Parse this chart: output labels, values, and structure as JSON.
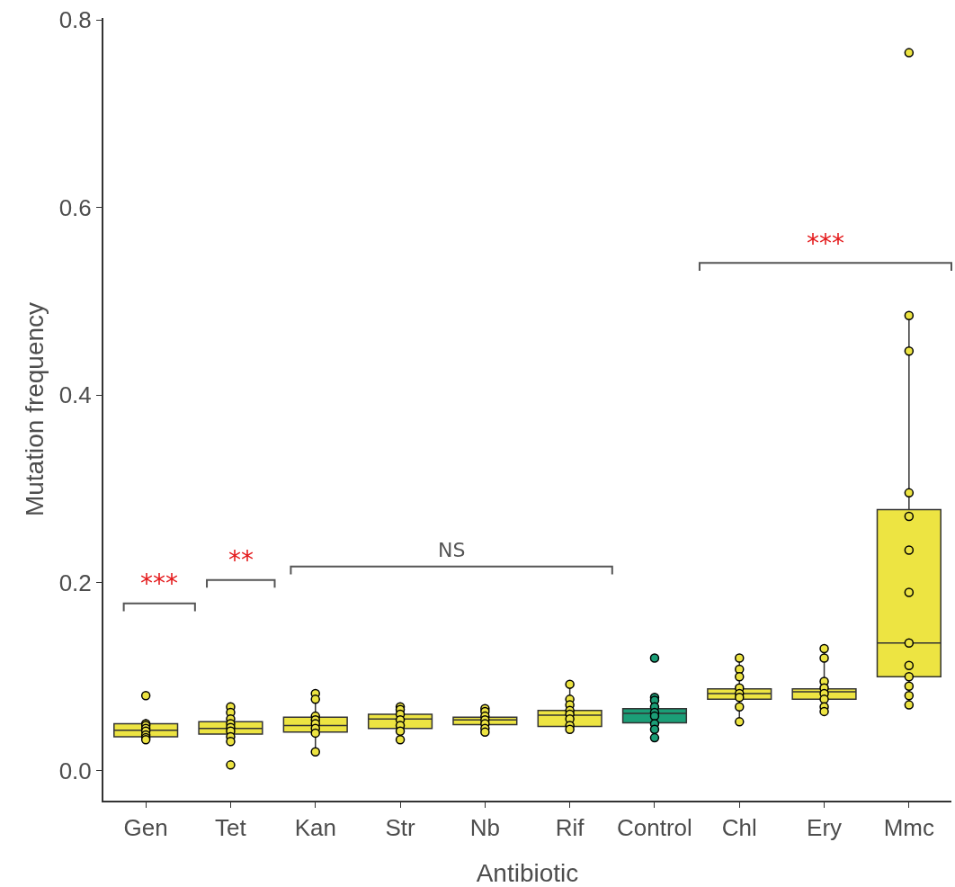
{
  "chart_data": {
    "type": "box",
    "xlabel": "Antibiotic",
    "ylabel": "Mutation frequency",
    "categories": [
      "Gen",
      "Tet",
      "Kan",
      "Str",
      "Nb",
      "Rif",
      "Control",
      "Chl",
      "Ery",
      "Mmc"
    ],
    "ylim": [
      -0.032,
      0.802
    ],
    "yticks": [
      {
        "value": 0,
        "label": "0.0"
      },
      0.2,
      0.4,
      0.6,
      0.8
    ],
    "grid": false,
    "marker": "circle",
    "annotations": [
      "***",
      "**",
      "NS",
      "***"
    ],
    "series": [
      {
        "colors": [
          "#ede442",
          "#ede442",
          "#ede442",
          "#ede442",
          "#ede442",
          "#ede442",
          "#1b9e77",
          "#ede442",
          "#ede442",
          "#ede442"
        ],
        "boxes": [
          {
            "low": 0.032,
            "q1": 0.036,
            "median": 0.043,
            "q3": 0.05,
            "high": 0.055,
            "outliers": [
              0.08
            ]
          },
          {
            "low": 0.03,
            "q1": 0.039,
            "median": 0.045,
            "q3": 0.052,
            "high": 0.068,
            "outliers": [
              0.006
            ]
          },
          {
            "low": 0.02,
            "q1": 0.041,
            "median": 0.048,
            "q3": 0.057,
            "high": 0.082
          },
          {
            "low": 0.033,
            "q1": 0.045,
            "median": 0.055,
            "q3": 0.06,
            "high": 0.068
          },
          {
            "low": 0.041,
            "q1": 0.049,
            "median": 0.054,
            "q3": 0.057,
            "high": 0.066
          },
          {
            "low": 0.044,
            "q1": 0.047,
            "median": 0.059,
            "q3": 0.064,
            "high": 0.092
          },
          {
            "low": 0.035,
            "q1": 0.051,
            "median": 0.061,
            "q3": 0.066,
            "high": 0.078,
            "outliers": [
              0.12
            ]
          },
          {
            "low": 0.052,
            "q1": 0.076,
            "median": 0.082,
            "q3": 0.087,
            "high": 0.12
          },
          {
            "low": 0.063,
            "q1": 0.076,
            "median": 0.084,
            "q3": 0.087,
            "high": 0.13
          },
          {
            "low": 0.07,
            "q1": 0.1,
            "median": 0.136,
            "q3": 0.278,
            "high": 0.485,
            "outliers": [
              0.765
            ]
          }
        ]
      },
      {
        "type": "scatter",
        "x": [
          "Gen",
          "Gen",
          "Gen",
          "Gen",
          "Gen",
          "Gen",
          "Gen",
          "Tet",
          "Tet",
          "Tet",
          "Tet",
          "Tet",
          "Tet",
          "Tet",
          "Tet",
          "Kan",
          "Kan",
          "Kan",
          "Kan",
          "Kan",
          "Kan",
          "Kan",
          "Kan",
          "Str",
          "Str",
          "Str",
          "Str",
          "Str",
          "Str",
          "Str",
          "Nb",
          "Nb",
          "Nb",
          "Nb",
          "Nb",
          "Nb",
          "Nb",
          "Rif",
          "Rif",
          "Rif",
          "Rif",
          "Rif",
          "Rif",
          "Rif",
          "Rif",
          "Control",
          "Control",
          "Control",
          "Control",
          "Control",
          "Control",
          "Control",
          "Control",
          "Chl",
          "Chl",
          "Chl",
          "Chl",
          "Chl",
          "Chl",
          "Chl",
          "Chl",
          "Ery",
          "Ery",
          "Ery",
          "Ery",
          "Ery",
          "Ery",
          "Ery",
          "Ery",
          "Mmc",
          "Mmc",
          "Mmc",
          "Mmc",
          "Mmc",
          "Mmc",
          "Mmc",
          "Mmc",
          "Mmc",
          "Mmc",
          "Mmc",
          "Mmc"
        ],
        "values": [
          0.05,
          0.048,
          0.045,
          0.042,
          0.038,
          0.035,
          0.033,
          0.068,
          0.062,
          0.055,
          0.05,
          0.046,
          0.042,
          0.036,
          0.031,
          0.082,
          0.076,
          0.058,
          0.054,
          0.05,
          0.045,
          0.04,
          0.02,
          0.068,
          0.065,
          0.06,
          0.054,
          0.048,
          0.042,
          0.033,
          0.066,
          0.063,
          0.058,
          0.054,
          0.05,
          0.045,
          0.041,
          0.092,
          0.076,
          0.07,
          0.064,
          0.06,
          0.055,
          0.048,
          0.044,
          0.078,
          0.075,
          0.068,
          0.062,
          0.058,
          0.05,
          0.044,
          0.035,
          0.12,
          0.108,
          0.1,
          0.088,
          0.082,
          0.078,
          0.068,
          0.052,
          0.13,
          0.12,
          0.095,
          0.088,
          0.082,
          0.076,
          0.068,
          0.063,
          0.485,
          0.447,
          0.296,
          0.271,
          0.235,
          0.19,
          0.136,
          0.112,
          0.1,
          0.09,
          0.08,
          0.07
        ],
        "colors": [
          "#ede442",
          "#ede442",
          "#ede442",
          "#ede442",
          "#ede442",
          "#ede442",
          "#ede442",
          "#ede442",
          "#ede442",
          "#ede442",
          "#ede442",
          "#ede442",
          "#ede442",
          "#ede442",
          "#ede442",
          "#ede442",
          "#ede442",
          "#ede442",
          "#ede442",
          "#ede442",
          "#ede442",
          "#ede442",
          "#ede442",
          "#ede442",
          "#ede442",
          "#ede442",
          "#ede442",
          "#ede442",
          "#ede442",
          "#ede442",
          "#ede442",
          "#ede442",
          "#ede442",
          "#ede442",
          "#ede442",
          "#ede442",
          "#ede442",
          "#ede442",
          "#ede442",
          "#ede442",
          "#ede442",
          "#ede442",
          "#ede442",
          "#ede442",
          "#ede442",
          "#1b9e77",
          "#1b9e77",
          "#1b9e77",
          "#1b9e77",
          "#1b9e77",
          "#1b9e77",
          "#1b9e77",
          "#1b9e77",
          "#ede442",
          "#ede442",
          "#ede442",
          "#ede442",
          "#ede442",
          "#ede442",
          "#ede442",
          "#ede442",
          "#ede442",
          "#ede442",
          "#ede442",
          "#ede442",
          "#ede442",
          "#ede442",
          "#ede442",
          "#ede442",
          "#ede442",
          "#ede442",
          "#ede442",
          "#ede442",
          "#ede442",
          "#ede442",
          "#ede442",
          "#ede442",
          "#ede442",
          "#ede442",
          "#ede442",
          "#ede442"
        ]
      }
    ]
  }
}
